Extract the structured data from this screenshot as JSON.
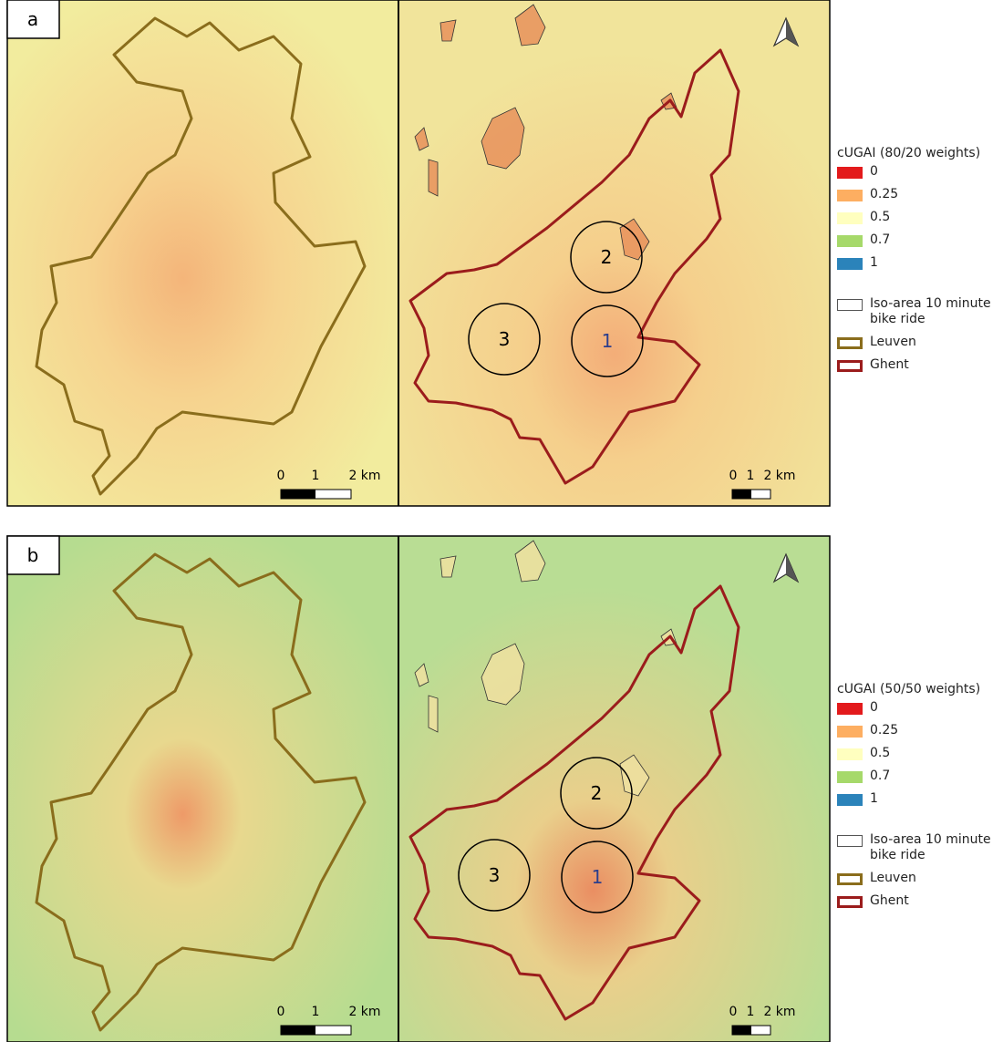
{
  "panels": [
    {
      "label": "a",
      "leuven_scale": [
        "0",
        "1",
        "2 km"
      ],
      "ghent_scale": [
        "0",
        "1",
        "2 km"
      ],
      "circles": [
        "1",
        "2",
        "3"
      ],
      "legend": {
        "title": "cUGAI (80/20 weights)",
        "items": [
          {
            "label": "0",
            "color": "#e31a1c"
          },
          {
            "label": "0.25",
            "color": "#fdae61"
          },
          {
            "label": "0.5",
            "color": "#ffffbf"
          },
          {
            "label": "0.7",
            "color": "#a6d96a"
          },
          {
            "label": "1",
            "color": "#2b83ba"
          }
        ],
        "iso": "Iso-area 10 minute bike ride",
        "leuven": "Leuven",
        "ghent": "Ghent"
      }
    },
    {
      "label": "b",
      "leuven_scale": [
        "0",
        "1",
        "2 km"
      ],
      "ghent_scale": [
        "0",
        "1",
        "2 km"
      ],
      "circles": [
        "1",
        "2",
        "3"
      ],
      "legend": {
        "title": "cUGAI (50/50 weights)",
        "items": [
          {
            "label": "0",
            "color": "#e31a1c"
          },
          {
            "label": "0.25",
            "color": "#fdae61"
          },
          {
            "label": "0.5",
            "color": "#ffffbf"
          },
          {
            "label": "0.7",
            "color": "#a6d96a"
          },
          {
            "label": "1",
            "color": "#2b83ba"
          }
        ],
        "iso": "Iso-area 10 minute bike ride",
        "leuven": "Leuven",
        "ghent": "Ghent"
      }
    }
  ]
}
